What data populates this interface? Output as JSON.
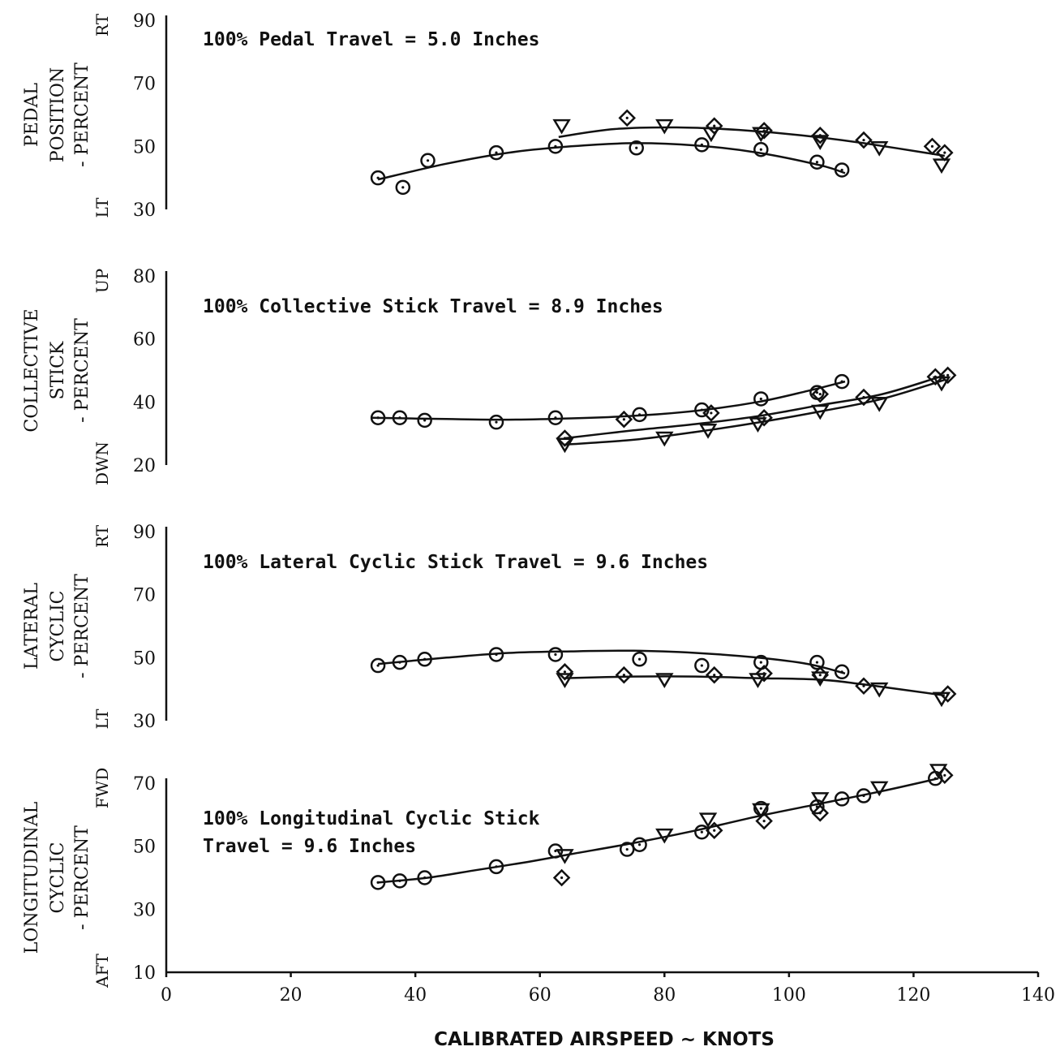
{
  "chart_data": {
    "type": "scatter",
    "x_axis": {
      "label": "CALIBRATED AIRSPEED ~ KNOTS",
      "range": [
        0,
        140
      ],
      "ticks": [
        "0",
        "20",
        "40",
        "60",
        "80",
        "100",
        "120",
        "140"
      ]
    },
    "panels": [
      {
        "id": "pedal",
        "ylabel_lines": [
          "PEDAL",
          "POSITION",
          "- PERCENT"
        ],
        "top_dir": "RT",
        "bottom_dir": "LT",
        "ylim": [
          30,
          90
        ],
        "yticks": [
          "30",
          "50",
          "70",
          "90"
        ],
        "note_lines": [
          "100% Pedal Travel = 5.0 Inches"
        ],
        "curves": [
          [
            [
              34,
              39.5
            ],
            [
              45,
              44.5
            ],
            [
              55,
              48
            ],
            [
              65,
              50
            ],
            [
              75,
              51
            ],
            [
              85,
              50.3
            ],
            [
              95,
              48
            ],
            [
              105,
              44
            ],
            [
              109,
              41.5
            ]
          ],
          [
            [
              63,
              53
            ],
            [
              72,
              55.5
            ],
            [
              82,
              56
            ],
            [
              92,
              55.2
            ],
            [
              102,
              53.5
            ],
            [
              112,
              51
            ],
            [
              125,
              47
            ]
          ]
        ],
        "series": [
          {
            "marker": "circle",
            "points": [
              [
                34,
                40
              ],
              [
                38,
                37
              ],
              [
                42,
                45.5
              ],
              [
                53,
                48
              ],
              [
                62.5,
                50
              ],
              [
                75.5,
                49.5
              ],
              [
                86,
                50.5
              ],
              [
                95.5,
                49
              ],
              [
                104.5,
                45
              ],
              [
                108.5,
                42.5
              ]
            ]
          },
          {
            "marker": "diamond",
            "points": [
              [
                74,
                59
              ],
              [
                88,
                56.5
              ],
              [
                96,
                55
              ],
              [
                105,
                53.5
              ],
              [
                112,
                52
              ],
              [
                123,
                50
              ],
              [
                125,
                48
              ]
            ]
          },
          {
            "marker": "triangle-down",
            "points": [
              [
                63.5,
                56.5
              ],
              [
                80,
                56.5
              ],
              [
                87.5,
                54
              ],
              [
                95.5,
                54
              ],
              [
                105,
                51.5
              ],
              [
                114.5,
                49.5
              ],
              [
                124.5,
                44
              ]
            ]
          }
        ]
      },
      {
        "id": "collective",
        "ylabel_lines": [
          "COLLECTIVE",
          "STICK",
          "- PERCENT"
        ],
        "top_dir": "UP",
        "bottom_dir": "DWN",
        "ylim": [
          20,
          80
        ],
        "yticks": [
          "20",
          "40",
          "60",
          "80"
        ],
        "note_lines": [
          "100% Collective Stick Travel = 8.9 Inches"
        ],
        "curves": [
          [
            [
              33,
              35
            ],
            [
              45,
              34.6
            ],
            [
              55,
              34.4
            ],
            [
              65,
              34.8
            ],
            [
              75,
              35.6
            ],
            [
              85,
              37.2
            ],
            [
              95,
              40
            ],
            [
              103,
              43.5
            ],
            [
              109,
              46.5
            ]
          ],
          [
            [
              64,
              28.5
            ],
            [
              75,
              31
            ],
            [
              85,
              33
            ],
            [
              95,
              35.5
            ],
            [
              105,
              39
            ],
            [
              115,
              42.5
            ],
            [
              125,
              48.5
            ]
          ],
          [
            [
              64,
              26.5
            ],
            [
              75,
              28
            ],
            [
              85,
              30.5
            ],
            [
              95,
              33.5
            ],
            [
              105,
              37
            ],
            [
              115,
              41
            ],
            [
              125,
              47
            ]
          ]
        ],
        "series": [
          {
            "marker": "circle",
            "points": [
              [
                34,
                35
              ],
              [
                37.5,
                35
              ],
              [
                41.5,
                34.2
              ],
              [
                53,
                33.6
              ],
              [
                62.5,
                35
              ],
              [
                76,
                36
              ],
              [
                86,
                37.5
              ],
              [
                95.5,
                41
              ],
              [
                104.5,
                43
              ],
              [
                108.5,
                46.5
              ]
            ]
          },
          {
            "marker": "diamond",
            "points": [
              [
                64,
                28.5
              ],
              [
                73.5,
                34.5
              ],
              [
                87.5,
                36.5
              ],
              [
                96,
                35
              ],
              [
                105,
                42.5
              ],
              [
                112,
                41.5
              ],
              [
                123.5,
                48
              ],
              [
                125.5,
                48.5
              ]
            ]
          },
          {
            "marker": "triangle-down",
            "points": [
              [
                64,
                26.5
              ],
              [
                80,
                28.5
              ],
              [
                87,
                31
              ],
              [
                95,
                33
              ],
              [
                105,
                37
              ],
              [
                114.5,
                39.5
              ],
              [
                124.5,
                46
              ]
            ]
          }
        ]
      },
      {
        "id": "lateral",
        "ylabel_lines": [
          "LATERAL",
          "CYCLIC",
          "- PERCENT"
        ],
        "top_dir": "RT",
        "bottom_dir": "LT",
        "ylim": [
          30,
          90
        ],
        "yticks": [
          "30",
          "50",
          "70",
          "90"
        ],
        "note_lines": [
          "100% Lateral Cyclic Stick Travel = 9.6 Inches"
        ],
        "curves": [
          [
            [
              34,
              48
            ],
            [
              45,
              50
            ],
            [
              55,
              51.5
            ],
            [
              65,
              52
            ],
            [
              75,
              52.2
            ],
            [
              85,
              51.5
            ],
            [
              95,
              50
            ],
            [
              103,
              48
            ],
            [
              109,
              45
            ]
          ],
          [
            [
              64,
              43.5
            ],
            [
              75,
              44
            ],
            [
              85,
              44
            ],
            [
              95,
              43.5
            ],
            [
              105,
              43
            ],
            [
              112,
              41.5
            ],
            [
              125,
              38
            ]
          ]
        ],
        "series": [
          {
            "marker": "circle",
            "points": [
              [
                34,
                47.5
              ],
              [
                37.5,
                48.5
              ],
              [
                41.5,
                49.5
              ],
              [
                53,
                51
              ],
              [
                62.5,
                51
              ],
              [
                76,
                49.5
              ],
              [
                86,
                47.5
              ],
              [
                95.5,
                48.5
              ],
              [
                104.5,
                48.5
              ],
              [
                108.5,
                45.5
              ]
            ]
          },
          {
            "marker": "diamond",
            "points": [
              [
                64,
                45.5
              ],
              [
                73.5,
                44.5
              ],
              [
                88,
                44.5
              ],
              [
                96,
                45
              ],
              [
                105,
                44.5
              ],
              [
                112,
                41
              ],
              [
                125.5,
                38.5
              ]
            ]
          },
          {
            "marker": "triangle-down",
            "points": [
              [
                64,
                43
              ],
              [
                80,
                43
              ],
              [
                95,
                43
              ],
              [
                105,
                43.5
              ],
              [
                114.5,
                40
              ],
              [
                124.5,
                37
              ]
            ]
          }
        ]
      },
      {
        "id": "longitudinal",
        "ylabel_lines": [
          "LONGITUDINAL",
          "CYCLIC",
          "- PERCENT"
        ],
        "top_dir": "FWD",
        "bottom_dir": "AFT",
        "ylim": [
          10,
          70
        ],
        "yticks": [
          "10",
          "30",
          "50",
          "70"
        ],
        "note_lines": [
          "100% Longitudinal Cyclic Stick",
          "Travel = 9.6 Inches"
        ],
        "curves": [
          [
            [
              34,
              38.5
            ],
            [
              42,
              40
            ],
            [
              50,
              42.5
            ],
            [
              58,
              45
            ],
            [
              65,
              47.5
            ],
            [
              75,
              51
            ],
            [
              85,
              55
            ],
            [
              95,
              59.5
            ],
            [
              105,
              63.5
            ],
            [
              115,
              67.5
            ],
            [
              124,
              71.5
            ]
          ]
        ],
        "series": [
          {
            "marker": "circle",
            "points": [
              [
                34,
                38.5
              ],
              [
                37.5,
                39
              ],
              [
                41.5,
                40
              ],
              [
                53,
                43.5
              ],
              [
                62.5,
                48.5
              ],
              [
                74,
                49
              ],
              [
                76,
                50.5
              ],
              [
                86,
                54.5
              ],
              [
                95.5,
                62
              ],
              [
                104.5,
                62.5
              ],
              [
                108.5,
                65
              ],
              [
                112,
                66
              ],
              [
                123.5,
                71.5
              ]
            ]
          },
          {
            "marker": "diamond",
            "points": [
              [
                63.5,
                40
              ],
              [
                88,
                55
              ],
              [
                96,
                58
              ],
              [
                105,
                60.5
              ],
              [
                125,
                72.5
              ]
            ]
          },
          {
            "marker": "triangle-down",
            "points": [
              [
                64,
                47
              ],
              [
                80,
                53.5
              ],
              [
                87,
                58.5
              ],
              [
                95.5,
                61.5
              ],
              [
                105,
                65
              ],
              [
                114.5,
                68.5
              ],
              [
                124,
                74
              ]
            ]
          }
        ]
      }
    ]
  }
}
